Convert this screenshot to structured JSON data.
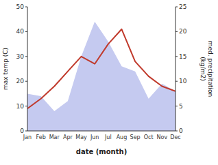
{
  "chart_data": {
    "type": "line",
    "categories": [
      "Jan",
      "Feb",
      "Mar",
      "Apr",
      "May",
      "Jun",
      "Jul",
      "Aug",
      "Sep",
      "Oct",
      "Nov",
      "Dec"
    ],
    "series": [
      {
        "type": "area",
        "axis": "y2",
        "color": "#c5caf0",
        "values": [
          7.5,
          7,
          4,
          6,
          15,
          22,
          18,
          13,
          12,
          6.5,
          9.5,
          8
        ]
      },
      {
        "type": "line",
        "color": "#c0392b",
        "values": [
          9,
          13,
          18,
          24,
          30,
          27,
          35,
          41,
          28,
          22,
          18,
          16
        ]
      }
    ],
    "xlabel": "date (month)",
    "ylabel": "max temp (C)",
    "y2label": "med. precipitation\n(kg/m2)",
    "ylim": [
      0,
      50
    ],
    "yticks": [
      0,
      10,
      20,
      30,
      40,
      50
    ],
    "y2lim": [
      0,
      25
    ],
    "y2ticks": [
      0,
      5,
      10,
      15,
      20,
      25
    ],
    "grid": false
  }
}
